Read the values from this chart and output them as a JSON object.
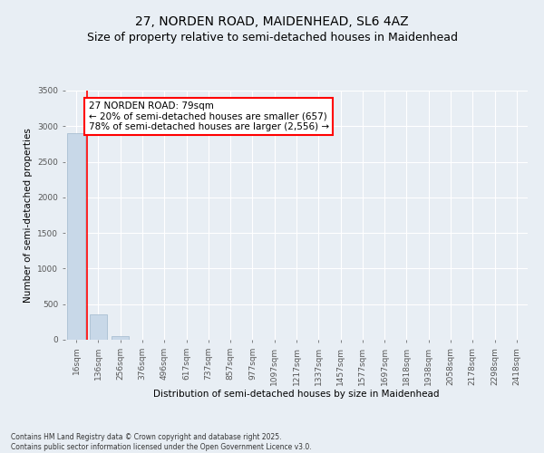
{
  "title1": "27, NORDEN ROAD, MAIDENHEAD, SL6 4AZ",
  "title2": "Size of property relative to semi-detached houses in Maidenhead",
  "xlabel": "Distribution of semi-detached houses by size in Maidenhead",
  "ylabel": "Number of semi-detached properties",
  "categories": [
    "16sqm",
    "136sqm",
    "256sqm",
    "376sqm",
    "496sqm",
    "617sqm",
    "737sqm",
    "857sqm",
    "977sqm",
    "1097sqm",
    "1217sqm",
    "1337sqm",
    "1457sqm",
    "1577sqm",
    "1697sqm",
    "1818sqm",
    "1938sqm",
    "2058sqm",
    "2178sqm",
    "2298sqm",
    "2418sqm"
  ],
  "values": [
    2900,
    360,
    50,
    0,
    0,
    0,
    0,
    0,
    0,
    0,
    0,
    0,
    0,
    0,
    0,
    0,
    0,
    0,
    0,
    0,
    0
  ],
  "bar_color": "#c8d8e8",
  "bar_edge_color": "#a0b8cc",
  "vline_color": "red",
  "annotation_text": "27 NORDEN ROAD: 79sqm\n← 20% of semi-detached houses are smaller (657)\n78% of semi-detached houses are larger (2,556) →",
  "annotation_box_color": "white",
  "annotation_box_edge_color": "red",
  "ylim": [
    0,
    3500
  ],
  "yticks": [
    0,
    500,
    1000,
    1500,
    2000,
    2500,
    3000,
    3500
  ],
  "background_color": "#e8eef4",
  "plot_bg_color": "#e8eef4",
  "grid_color": "white",
  "footer_text": "Contains HM Land Registry data © Crown copyright and database right 2025.\nContains public sector information licensed under the Open Government Licence v3.0.",
  "title_fontsize": 10,
  "subtitle_fontsize": 9,
  "axis_label_fontsize": 7.5,
  "tick_fontsize": 6.5,
  "annotation_fontsize": 7.5,
  "footer_fontsize": 5.5
}
